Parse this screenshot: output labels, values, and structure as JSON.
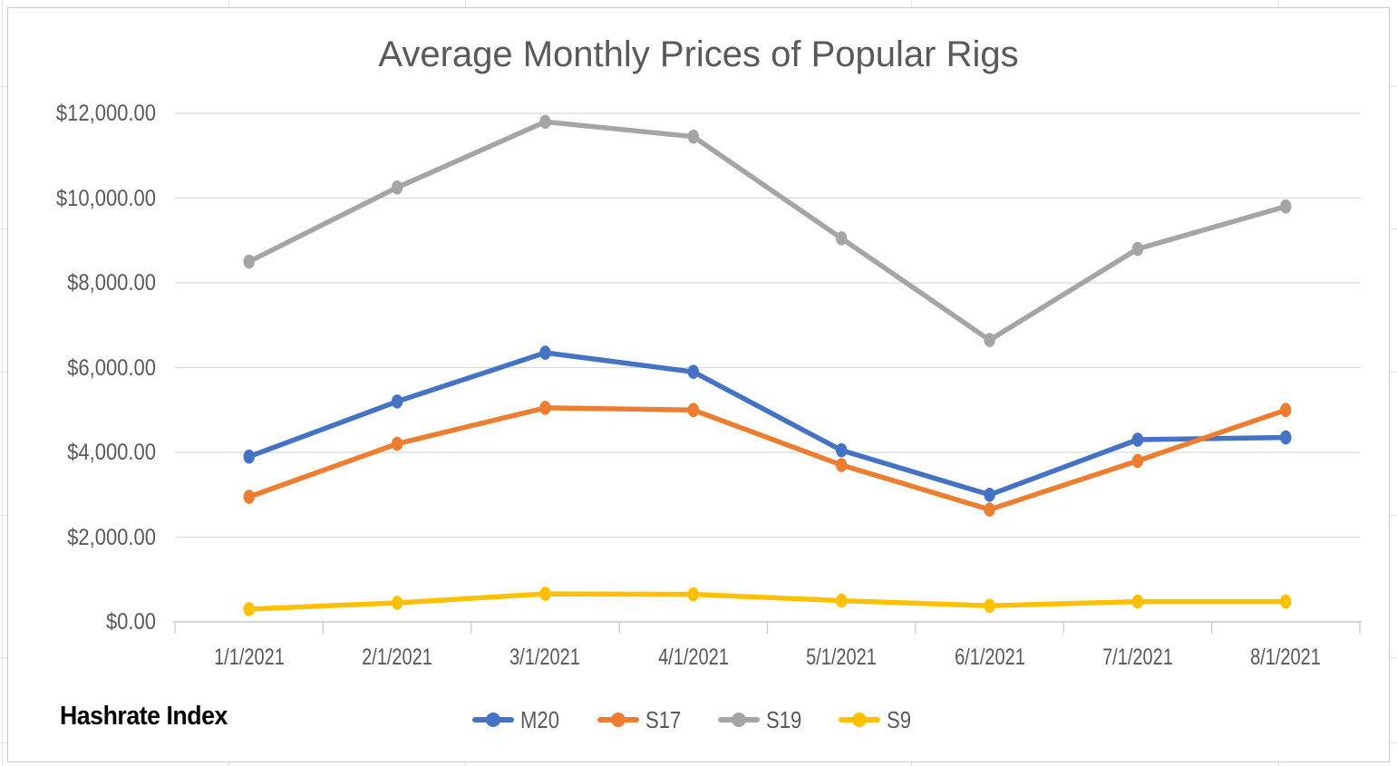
{
  "chart_data": {
    "type": "line",
    "title": "Average Monthly Prices of Popular Rigs",
    "categories": [
      "1/1/2021",
      "2/1/2021",
      "3/1/2021",
      "4/1/2021",
      "5/1/2021",
      "6/1/2021",
      "7/1/2021",
      "8/1/2021"
    ],
    "series": [
      {
        "name": "M20",
        "color": "#4472C4",
        "values": [
          3900,
          5200,
          6350,
          5900,
          4050,
          3000,
          4300,
          4350
        ]
      },
      {
        "name": "S17",
        "color": "#ED7D31",
        "values": [
          2950,
          4200,
          5050,
          5000,
          3700,
          2650,
          3800,
          5000
        ]
      },
      {
        "name": "S19",
        "color": "#A5A5A5",
        "values": [
          8500,
          10250,
          11800,
          11450,
          9050,
          6650,
          8800,
          9800
        ]
      },
      {
        "name": "S9",
        "color": "#FFC000",
        "values": [
          300,
          450,
          660,
          650,
          500,
          380,
          480,
          480
        ]
      }
    ],
    "y_axis": {
      "min": 0,
      "max": 12000,
      "step": 2000,
      "tick_labels": [
        "$0.00",
        "$2,000.00",
        "$4,000.00",
        "$6,000.00",
        "$8,000.00",
        "$10,000.00",
        "$12,000.00"
      ]
    },
    "grid": true,
    "legend_position": "bottom",
    "legend_entries": [
      "M20",
      "S17",
      "S19",
      "S9"
    ]
  },
  "watermark": "Hashrate Index",
  "colors": {
    "title_text": "#595959",
    "axis_text": "#595959",
    "gridline": "#D9D9D9",
    "axis_line": "#C9C9C9",
    "panel_border": "#C9C9C9",
    "sheet_gridline": "#E4E4E4",
    "watermark_text": "#000000"
  }
}
